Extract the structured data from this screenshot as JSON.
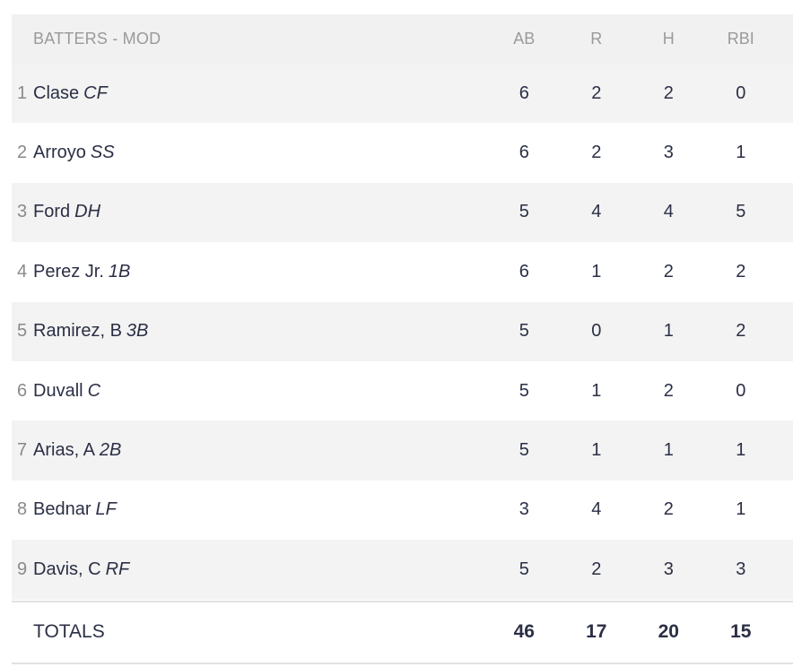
{
  "header": {
    "title": "BATTERS - MOD",
    "columns": [
      "AB",
      "R",
      "H",
      "RBI"
    ]
  },
  "batters": [
    {
      "order": "1",
      "name": "Clase",
      "pos": "CF",
      "ab": "6",
      "r": "2",
      "h": "2",
      "rbi": "0"
    },
    {
      "order": "2",
      "name": "Arroyo",
      "pos": "SS",
      "ab": "6",
      "r": "2",
      "h": "3",
      "rbi": "1"
    },
    {
      "order": "3",
      "name": "Ford",
      "pos": "DH",
      "ab": "5",
      "r": "4",
      "h": "4",
      "rbi": "5"
    },
    {
      "order": "4",
      "name": "Perez Jr.",
      "pos": "1B",
      "ab": "6",
      "r": "1",
      "h": "2",
      "rbi": "2"
    },
    {
      "order": "5",
      "name": "Ramirez, B",
      "pos": "3B",
      "ab": "5",
      "r": "0",
      "h": "1",
      "rbi": "2"
    },
    {
      "order": "6",
      "name": "Duvall",
      "pos": "C",
      "ab": "5",
      "r": "1",
      "h": "2",
      "rbi": "0"
    },
    {
      "order": "7",
      "name": "Arias, A",
      "pos": "2B",
      "ab": "5",
      "r": "1",
      "h": "1",
      "rbi": "1"
    },
    {
      "order": "8",
      "name": "Bednar",
      "pos": "LF",
      "ab": "3",
      "r": "4",
      "h": "2",
      "rbi": "1"
    },
    {
      "order": "9",
      "name": "Davis, C",
      "pos": "RF",
      "ab": "5",
      "r": "2",
      "h": "3",
      "rbi": "3"
    }
  ],
  "totals": {
    "label": "TOTALS",
    "ab": "46",
    "r": "17",
    "h": "20",
    "rbi": "15"
  }
}
